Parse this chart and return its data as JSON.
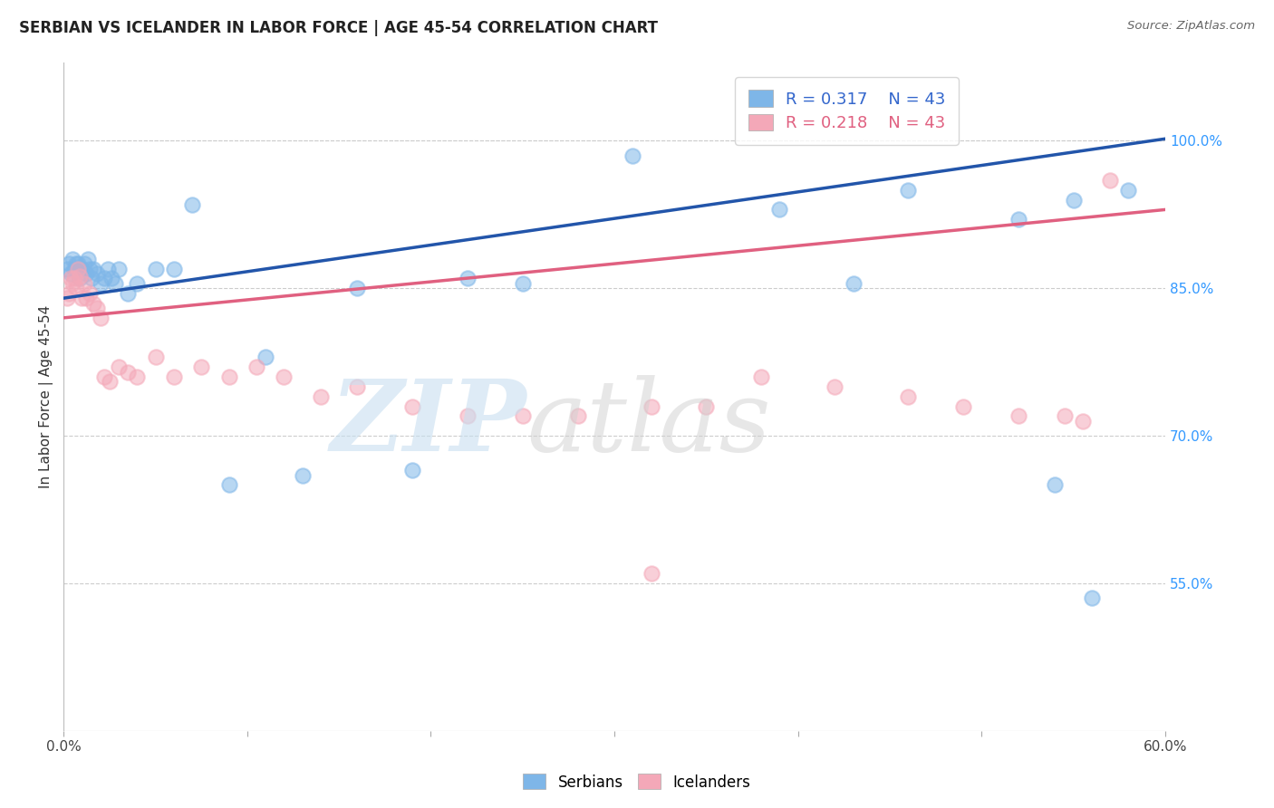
{
  "title": "SERBIAN VS ICELANDER IN LABOR FORCE | AGE 45-54 CORRELATION CHART",
  "source": "Source: ZipAtlas.com",
  "ylabel": "In Labor Force | Age 45-54",
  "xlim": [
    0.0,
    0.6
  ],
  "ylim": [
    0.4,
    1.08
  ],
  "y_ticks_right": [
    0.55,
    0.7,
    0.85,
    1.0
  ],
  "y_tick_labels_right": [
    "55.0%",
    "70.0%",
    "85.0%",
    "100.0%"
  ],
  "grid_color": "#cccccc",
  "serbian_color": "#7EB6E8",
  "icelander_color": "#F4A8B8",
  "serbian_line_color": "#2255AA",
  "icelander_line_color": "#E06080",
  "legend_serbian_R": "0.317",
  "legend_serbian_N": "43",
  "legend_icelander_R": "0.218",
  "legend_icelander_N": "43",
  "serbian_x": [
    0.002,
    0.003,
    0.004,
    0.005,
    0.006,
    0.007,
    0.008,
    0.009,
    0.01,
    0.011,
    0.012,
    0.013,
    0.014,
    0.015,
    0.016,
    0.018,
    0.02,
    0.022,
    0.024,
    0.026,
    0.028,
    0.03,
    0.035,
    0.04,
    0.05,
    0.06,
    0.07,
    0.09,
    0.11,
    0.13,
    0.16,
    0.19,
    0.22,
    0.25,
    0.31,
    0.39,
    0.43,
    0.46,
    0.52,
    0.55,
    0.54,
    0.56,
    0.58
  ],
  "serbian_y": [
    0.87,
    0.875,
    0.865,
    0.88,
    0.87,
    0.875,
    0.875,
    0.86,
    0.87,
    0.875,
    0.865,
    0.88,
    0.87,
    0.86,
    0.87,
    0.865,
    0.855,
    0.86,
    0.87,
    0.86,
    0.855,
    0.87,
    0.845,
    0.855,
    0.87,
    0.87,
    0.935,
    0.65,
    0.78,
    0.66,
    0.85,
    0.665,
    0.86,
    0.855,
    0.985,
    0.93,
    0.855,
    0.95,
    0.92,
    0.94,
    0.65,
    0.535,
    0.95
  ],
  "icelander_x": [
    0.002,
    0.003,
    0.004,
    0.005,
    0.006,
    0.007,
    0.008,
    0.009,
    0.01,
    0.011,
    0.012,
    0.014,
    0.016,
    0.018,
    0.02,
    0.022,
    0.025,
    0.03,
    0.035,
    0.04,
    0.05,
    0.06,
    0.075,
    0.09,
    0.105,
    0.12,
    0.14,
    0.16,
    0.19,
    0.22,
    0.25,
    0.28,
    0.32,
    0.35,
    0.38,
    0.42,
    0.46,
    0.49,
    0.52,
    0.545,
    0.32,
    0.555,
    0.57
  ],
  "icelander_y": [
    0.84,
    0.845,
    0.86,
    0.855,
    0.86,
    0.85,
    0.87,
    0.862,
    0.84,
    0.855,
    0.84,
    0.845,
    0.835,
    0.83,
    0.82,
    0.76,
    0.755,
    0.77,
    0.765,
    0.76,
    0.78,
    0.76,
    0.77,
    0.76,
    0.77,
    0.76,
    0.74,
    0.75,
    0.73,
    0.72,
    0.72,
    0.72,
    0.73,
    0.73,
    0.76,
    0.75,
    0.74,
    0.73,
    0.72,
    0.72,
    0.56,
    0.715,
    0.96
  ]
}
